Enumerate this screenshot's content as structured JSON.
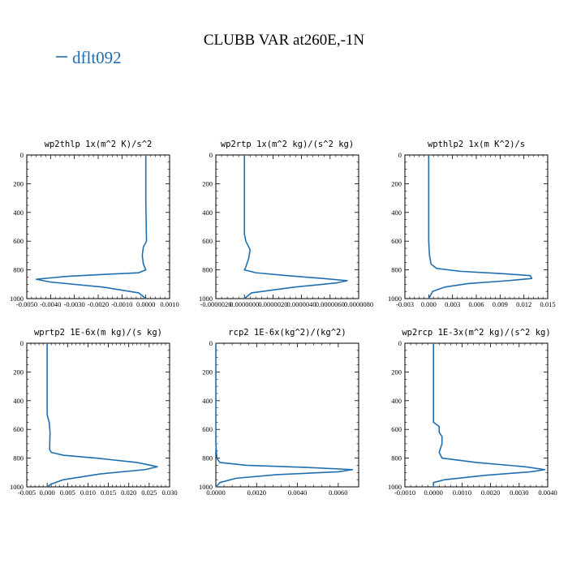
{
  "figure": {
    "title": "CLUBB VAR at260E,-1N",
    "legend": [
      {
        "label": "dflt092",
        "color": "#1f6fb0"
      }
    ]
  },
  "chart_data": [
    {
      "type": "line",
      "title": "wp2thlp  1x(m^2 K)/s^2",
      "xlim": [
        -0.005,
        0.001
      ],
      "ylim": [
        1000,
        0
      ],
      "xticks": [
        -0.005,
        -0.004,
        -0.003,
        -0.002,
        -0.001,
        0.0,
        0.001
      ],
      "xtick_labels": [
        "-0.0050",
        "-0.0040",
        "-0.0030",
        "-0.0020",
        "-0.0010",
        "0.0000",
        "0.0010"
      ],
      "yticks": [
        0,
        200,
        400,
        600,
        800,
        1000
      ],
      "ytick_labels": [
        "0",
        "200",
        "400",
        "600",
        "800",
        "1000"
      ],
      "series": [
        {
          "color": "#1f6fb0",
          "x": [
            0.0,
            0.0,
            2e-05,
            3e-05,
            -0.0001,
            -0.00015,
            -0.0001,
            0.0,
            -0.0003,
            -0.0016,
            -0.0033,
            -0.0046,
            -0.004,
            -0.0018,
            -0.0003,
            0.0
          ],
          "y": [
            0,
            300,
            500,
            600,
            640,
            700,
            760,
            800,
            820,
            830,
            845,
            865,
            885,
            920,
            960,
            1000
          ]
        }
      ]
    },
    {
      "type": "line",
      "title": "wp2rtp  1x(m^2 kg)/(s^2 kg)",
      "xlim": [
        -2e-06,
        8e-06
      ],
      "ylim": [
        1000,
        0
      ],
      "xticks": [
        -2e-06,
        0.0,
        2e-06,
        4e-06,
        6e-06,
        8e-06
      ],
      "xtick_labels": [
        "-0.0000020",
        "0.0000000",
        "0.0000020",
        "0.0000040",
        "0.0000060",
        "0.0000080"
      ],
      "yticks": [
        0,
        200,
        400,
        600,
        800,
        1000
      ],
      "ytick_labels": [
        "0",
        "200",
        "400",
        "600",
        "800",
        "1000"
      ],
      "series": [
        {
          "color": "#1f6fb0",
          "x": [
            0.0,
            0.0,
            0.0,
            1e-07,
            4e-07,
            3e-07,
            1e-07,
            0.0,
            8e-07,
            3e-06,
            5.5e-06,
            7.2e-06,
            6.5e-06,
            3.5e-06,
            5e-07,
            0.0
          ],
          "y": [
            0,
            300,
            550,
            600,
            660,
            720,
            780,
            800,
            820,
            840,
            860,
            875,
            890,
            920,
            960,
            1000
          ]
        }
      ]
    },
    {
      "type": "line",
      "title": "wpthlp2  1x(m K^2)/s",
      "xlim": [
        -0.003,
        0.015
      ],
      "ylim": [
        1000,
        0
      ],
      "xticks": [
        -0.003,
        0.0,
        0.003,
        0.006,
        0.009,
        0.012,
        0.015
      ],
      "xtick_labels": [
        "-0.003",
        "0.000",
        "0.003",
        "0.006",
        "0.009",
        "0.012",
        "0.015"
      ],
      "yticks": [
        0,
        200,
        400,
        600,
        800,
        1000
      ],
      "ytick_labels": [
        "0",
        "200",
        "400",
        "600",
        "800",
        "1000"
      ],
      "series": [
        {
          "color": "#1f6fb0",
          "x": [
            0.0,
            0.0,
            0.0,
            0.0001,
            0.0003,
            0.001,
            0.004,
            0.009,
            0.0128,
            0.013,
            0.01,
            0.005,
            0.002,
            0.0005,
            0.0
          ],
          "y": [
            0,
            300,
            600,
            700,
            760,
            790,
            810,
            825,
            840,
            860,
            875,
            895,
            920,
            950,
            1000
          ]
        }
      ]
    },
    {
      "type": "line",
      "title": "wprtp2  1E-6x(m kg)/(s kg)",
      "xlim": [
        -0.005,
        0.03
      ],
      "ylim": [
        1000,
        0
      ],
      "xticks": [
        -0.005,
        0.0,
        0.005,
        0.01,
        0.015,
        0.02,
        0.025,
        0.03
      ],
      "xtick_labels": [
        "-0.005",
        "0.000",
        "0.005",
        "0.010",
        "0.015",
        "0.020",
        "0.025",
        "0.030"
      ],
      "yticks": [
        0,
        200,
        400,
        600,
        800,
        1000
      ],
      "ytick_labels": [
        "0",
        "200",
        "400",
        "600",
        "800",
        "1000"
      ],
      "series": [
        {
          "color": "#1f6fb0",
          "x": [
            0.0,
            0.0,
            0.0,
            0.0005,
            0.0007,
            0.0006,
            0.001,
            0.004,
            0.012,
            0.022,
            0.027,
            0.024,
            0.013,
            0.004,
            0.001,
            0.0
          ],
          "y": [
            0,
            300,
            500,
            550,
            620,
            740,
            760,
            780,
            800,
            830,
            860,
            880,
            910,
            950,
            980,
            1000
          ]
        }
      ]
    },
    {
      "type": "line",
      "title": "rcp2  1E-6x(kg^2)/(kg^2)",
      "xlim": [
        0.0,
        0.007
      ],
      "ylim": [
        1000,
        0
      ],
      "xticks": [
        0.0,
        0.002,
        0.004,
        0.006
      ],
      "xtick_labels": [
        "0.0000",
        "0.0020",
        "0.0040",
        "0.0060"
      ],
      "yticks": [
        0,
        200,
        400,
        600,
        800,
        1000
      ],
      "ytick_labels": [
        "0",
        "200",
        "400",
        "600",
        "800",
        "1000"
      ],
      "series": [
        {
          "color": "#1f6fb0",
          "x": [
            0.0,
            0.0,
            0.0,
            5e-05,
            0.0002,
            0.0015,
            0.0045,
            0.0067,
            0.006,
            0.003,
            0.001,
            0.0002,
            0.0
          ],
          "y": [
            0,
            300,
            700,
            800,
            830,
            850,
            865,
            880,
            895,
            915,
            940,
            970,
            1000
          ]
        }
      ]
    },
    {
      "type": "line",
      "title": "wp2rcp  1E-3x(m^2 kg)/(s^2 kg)",
      "xlim": [
        -0.001,
        0.004
      ],
      "ylim": [
        1000,
        0
      ],
      "xticks": [
        -0.001,
        0.0,
        0.001,
        0.002,
        0.003,
        0.004
      ],
      "xtick_labels": [
        "-0.0010",
        "0.0000",
        "0.0010",
        "0.0020",
        "0.0030",
        "0.0040"
      ],
      "yticks": [
        0,
        200,
        400,
        600,
        800,
        1000
      ],
      "ytick_labels": [
        "0",
        "200",
        "400",
        "600",
        "800",
        "1000"
      ],
      "series": [
        {
          "color": "#1f6fb0",
          "x": [
            0.0,
            0.0,
            0.0,
            0.0002,
            0.0002,
            0.0003,
            0.0003,
            0.0002,
            0.0003,
            0.0015,
            0.0032,
            0.0039,
            0.0034,
            0.0018,
            0.0004,
            0.0,
            0.0
          ],
          "y": [
            0,
            300,
            550,
            580,
            620,
            650,
            700,
            760,
            800,
            830,
            860,
            880,
            895,
            920,
            950,
            970,
            1000
          ]
        }
      ]
    }
  ]
}
